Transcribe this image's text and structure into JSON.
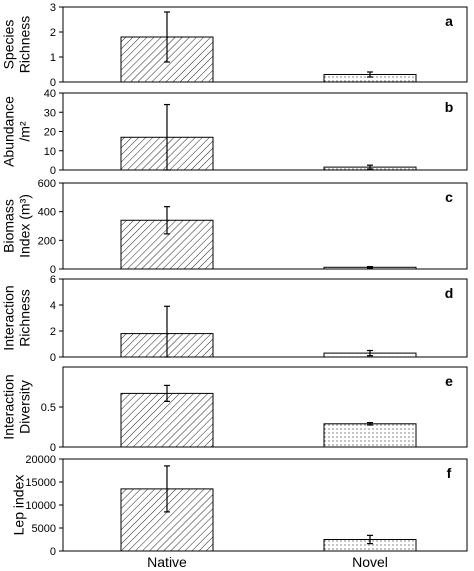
{
  "chart_data": [
    {
      "type": "bar",
      "panel": "a",
      "ylabel": [
        "Species",
        "Richness"
      ],
      "ylim": [
        0,
        3
      ],
      "yticks": [
        "0",
        "1",
        "2",
        "3"
      ],
      "categories": [
        "Native",
        "Novel"
      ],
      "values": [
        1.8,
        0.3
      ],
      "errors": [
        1.0,
        0.1
      ]
    },
    {
      "type": "bar",
      "panel": "b",
      "ylabel": [
        "Abundance",
        "/m²"
      ],
      "ylim": [
        0,
        40
      ],
      "yticks": [
        "0",
        "10",
        "20",
        "30",
        "40"
      ],
      "categories": [
        "Native",
        "Novel"
      ],
      "values": [
        17,
        1.5
      ],
      "errors": [
        17,
        1.0
      ]
    },
    {
      "type": "bar",
      "panel": "c",
      "ylabel": [
        "Biomass",
        "Index (m³)"
      ],
      "ylim": [
        0,
        600
      ],
      "yticks": [
        "0",
        "200",
        "400",
        "600"
      ],
      "categories": [
        "Native",
        "Novel"
      ],
      "values": [
        340,
        12
      ],
      "errors": [
        95,
        5
      ]
    },
    {
      "type": "bar",
      "panel": "d",
      "ylabel": [
        "Interaction",
        "Richness"
      ],
      "ylim": [
        0,
        6
      ],
      "yticks": [
        "0",
        "2",
        "4",
        "6"
      ],
      "categories": [
        "Native",
        "Novel"
      ],
      "values": [
        1.8,
        0.3
      ],
      "errors": [
        2.1,
        0.2
      ]
    },
    {
      "type": "bar",
      "panel": "e",
      "ylabel": [
        "Interaction",
        "Diversity"
      ],
      "ylim": [
        0,
        1.0
      ],
      "yticks": [
        "0",
        "0.5"
      ],
      "categories": [
        "Native",
        "Novel"
      ],
      "values": [
        0.67,
        0.29
      ],
      "errors": [
        0.1,
        0.015
      ]
    },
    {
      "type": "bar",
      "panel": "f",
      "ylabel": [
        "Lep index"
      ],
      "ylim": [
        0,
        20000
      ],
      "yticks": [
        "0",
        "5000",
        "10000",
        "15000",
        "20000"
      ],
      "categories": [
        "Native",
        "Novel"
      ],
      "values": [
        13500,
        2500
      ],
      "errors": [
        5000,
        900
      ]
    }
  ],
  "x_categories": [
    "Native",
    "Novel"
  ]
}
